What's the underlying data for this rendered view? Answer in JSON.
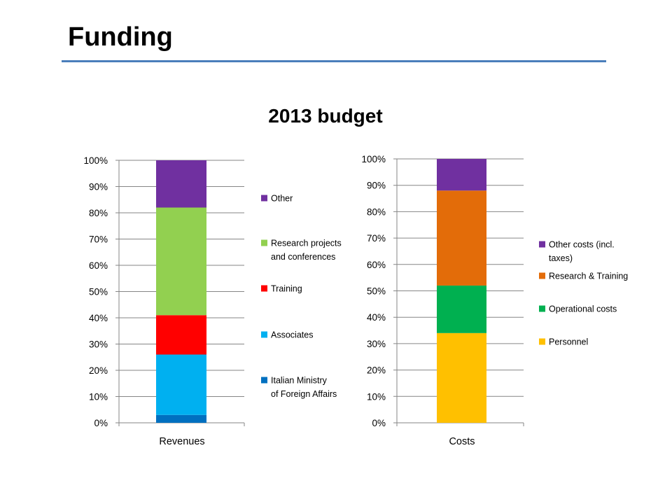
{
  "slide": {
    "title": "Funding",
    "accent": "#4a7ebb"
  },
  "chart_data": [
    {
      "type": "bar",
      "stacked": true,
      "title": "2013 budget",
      "categories": [
        "Revenues"
      ],
      "ylim": [
        0,
        100
      ],
      "yticks": [
        "0%",
        "10%",
        "20%",
        "30%",
        "40%",
        "50%",
        "60%",
        "70%",
        "80%",
        "90%",
        "100%"
      ],
      "grid": true,
      "legend": "right",
      "series": [
        {
          "name": "Italian Ministry of Foreign Affairs",
          "values": [
            3
          ],
          "color": "#0070c0"
        },
        {
          "name": "Associates",
          "values": [
            23
          ],
          "color": "#00b0f0"
        },
        {
          "name": "Training",
          "values": [
            15
          ],
          "color": "#ff0000"
        },
        {
          "name": "Research projects and conferences",
          "values": [
            41
          ],
          "color": "#92d050"
        },
        {
          "name": "Other",
          "values": [
            18
          ],
          "color": "#7030a0"
        }
      ]
    },
    {
      "type": "bar",
      "stacked": true,
      "categories": [
        "Costs"
      ],
      "ylim": [
        0,
        100
      ],
      "yticks": [
        "0%",
        "10%",
        "20%",
        "30%",
        "40%",
        "50%",
        "60%",
        "70%",
        "80%",
        "90%",
        "100%"
      ],
      "grid": true,
      "legend": "right",
      "series": [
        {
          "name": "Personnel",
          "values": [
            34
          ],
          "color": "#ffc000"
        },
        {
          "name": "Operational costs",
          "values": [
            18
          ],
          "color": "#00b050"
        },
        {
          "name": "Research & Training",
          "values": [
            36
          ],
          "color": "#e36c09"
        },
        {
          "name": "Other costs (incl. taxes)",
          "values": [
            12
          ],
          "color": "#7030a0"
        }
      ]
    }
  ]
}
